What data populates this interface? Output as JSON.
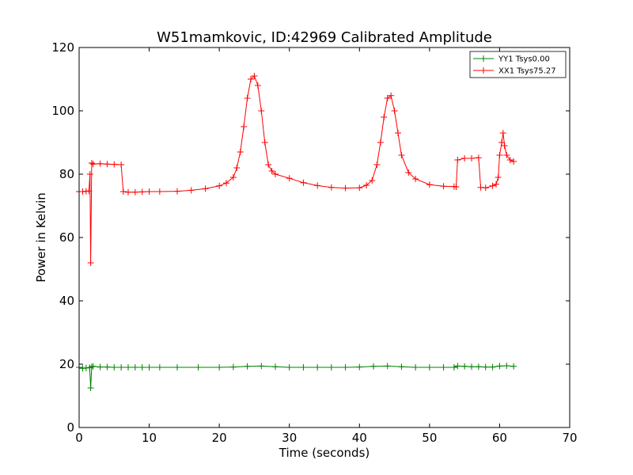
{
  "chart_data": {
    "type": "line",
    "title": "W51mamkovic, ID:42969 Calibrated Amplitude",
    "xlabel": "Time (seconds)",
    "ylabel": "Power in Kelvin",
    "xlim": [
      0,
      70
    ],
    "ylim": [
      0,
      120
    ],
    "xticks": [
      0,
      10,
      20,
      30,
      40,
      50,
      60,
      70
    ],
    "yticks": [
      0,
      20,
      40,
      60,
      80,
      100,
      120
    ],
    "grid": false,
    "legend": "top-right",
    "marker": "+",
    "series": [
      {
        "name": "YY1 Tsys0.00",
        "color": "#008000",
        "x": [
          0,
          0.5,
          1.0,
          1.5,
          1.65,
          1.8,
          2.0,
          3.0,
          4.0,
          5.0,
          6.0,
          7.0,
          8.0,
          9.0,
          10.0,
          11.5,
          14,
          17,
          20,
          22,
          24,
          26,
          28,
          30,
          32,
          34,
          36,
          38,
          40,
          42,
          44,
          46,
          48,
          50,
          52,
          53.5,
          54,
          55,
          56,
          57,
          58,
          59,
          60,
          61,
          62
        ],
        "y": [
          19,
          18.7,
          18.8,
          18.9,
          12.5,
          19.2,
          19.3,
          19.1,
          19.1,
          19.0,
          19.0,
          19.0,
          19.0,
          19.0,
          19.0,
          19.0,
          19.0,
          19.0,
          19.0,
          19.1,
          19.3,
          19.4,
          19.2,
          19.0,
          19.0,
          19.0,
          19.0,
          19.0,
          19.1,
          19.3,
          19.4,
          19.2,
          19.0,
          19.0,
          19.0,
          19.0,
          19.4,
          19.3,
          19.2,
          19.2,
          19.1,
          19.1,
          19.4,
          19.5,
          19.3
        ]
      },
      {
        "name": "XX1 Tsys75.27",
        "color": "#ff0000",
        "x": [
          0,
          0.5,
          1.0,
          1.4,
          1.55,
          1.65,
          1.8,
          2.0,
          3.0,
          4.0,
          5.0,
          6.0,
          6.3,
          7.0,
          8.0,
          9.0,
          10.0,
          11.5,
          14,
          16,
          18,
          20,
          21,
          22,
          22.5,
          23,
          23.5,
          24,
          24.5,
          25,
          25.5,
          26,
          26.5,
          27,
          27.5,
          28,
          30,
          32,
          34,
          36,
          38,
          40,
          41,
          41.8,
          42.5,
          43,
          43.5,
          44,
          44.5,
          45,
          45.5,
          46,
          47,
          48,
          50,
          52,
          53.5,
          53.8,
          54,
          55,
          56,
          57,
          57.3,
          58,
          59,
          59.5,
          59.8,
          60,
          60.3,
          60.5,
          60.7,
          61,
          61.5,
          62
        ],
        "y": [
          74.5,
          74.5,
          74.6,
          74.7,
          80,
          52,
          83.5,
          83.2,
          83.3,
          83.2,
          83.1,
          83.0,
          74.5,
          74.3,
          74.3,
          74.4,
          74.5,
          74.5,
          74.6,
          74.9,
          75.4,
          76.3,
          77.2,
          79,
          82,
          87,
          95,
          104,
          110,
          111,
          108,
          100,
          90,
          83,
          81,
          80,
          78.7,
          77.3,
          76.4,
          75.8,
          75.6,
          75.7,
          76.5,
          78,
          83,
          90,
          98,
          104,
          104.8,
          100,
          93,
          86,
          80.5,
          78.5,
          76.7,
          76.2,
          76.1,
          76.0,
          84.5,
          85.0,
          85.0,
          85.2,
          75.8,
          75.7,
          76.3,
          76.8,
          79,
          86,
          90,
          93,
          89,
          86,
          84.5,
          84
        ]
      }
    ]
  }
}
